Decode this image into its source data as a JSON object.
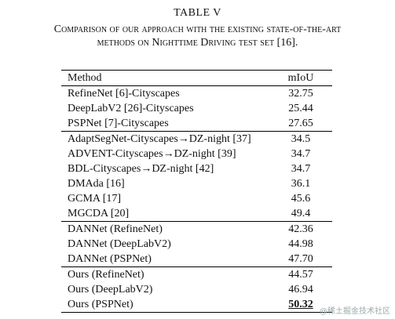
{
  "header": {
    "title": "TABLE V",
    "caption": [
      "Comparison of our approach with the existing state-of-the-art",
      "methods on Nighttime Driving test set [16]."
    ]
  },
  "table": {
    "columns": [
      "Method",
      "mIoU"
    ],
    "groups": [
      [
        [
          "RefineNet [6]-Cityscapes",
          "32.75"
        ],
        [
          "DeepLabV2 [26]-Cityscapes",
          "25.44"
        ],
        [
          "PSPNet [7]-Cityscapes",
          "27.65"
        ]
      ],
      [
        [
          "AdaptSegNet-Cityscapes→DZ-night [37]",
          "34.5"
        ],
        [
          "ADVENT-Cityscapes→DZ-night [39]",
          "34.7"
        ],
        [
          "BDL-Cityscapes→DZ-night [42]",
          "34.7"
        ],
        [
          "DMAda [16]",
          "36.1"
        ],
        [
          "GCMA [17]",
          "45.6"
        ],
        [
          "MGCDA [20]",
          "49.4"
        ]
      ],
      [
        [
          "DANNet (RefineNet)",
          "42.36"
        ],
        [
          "DANNet (DeepLabV2)",
          "44.98"
        ],
        [
          "DANNet (PSPNet)",
          "47.70"
        ]
      ],
      [
        [
          "Ours (RefineNet)",
          "44.57"
        ],
        [
          "Ours (DeepLabV2)",
          "46.94"
        ],
        [
          "Ours (PSPNet)",
          "50.32"
        ]
      ]
    ]
  },
  "watermark": "@稀土掘金技术社区"
}
